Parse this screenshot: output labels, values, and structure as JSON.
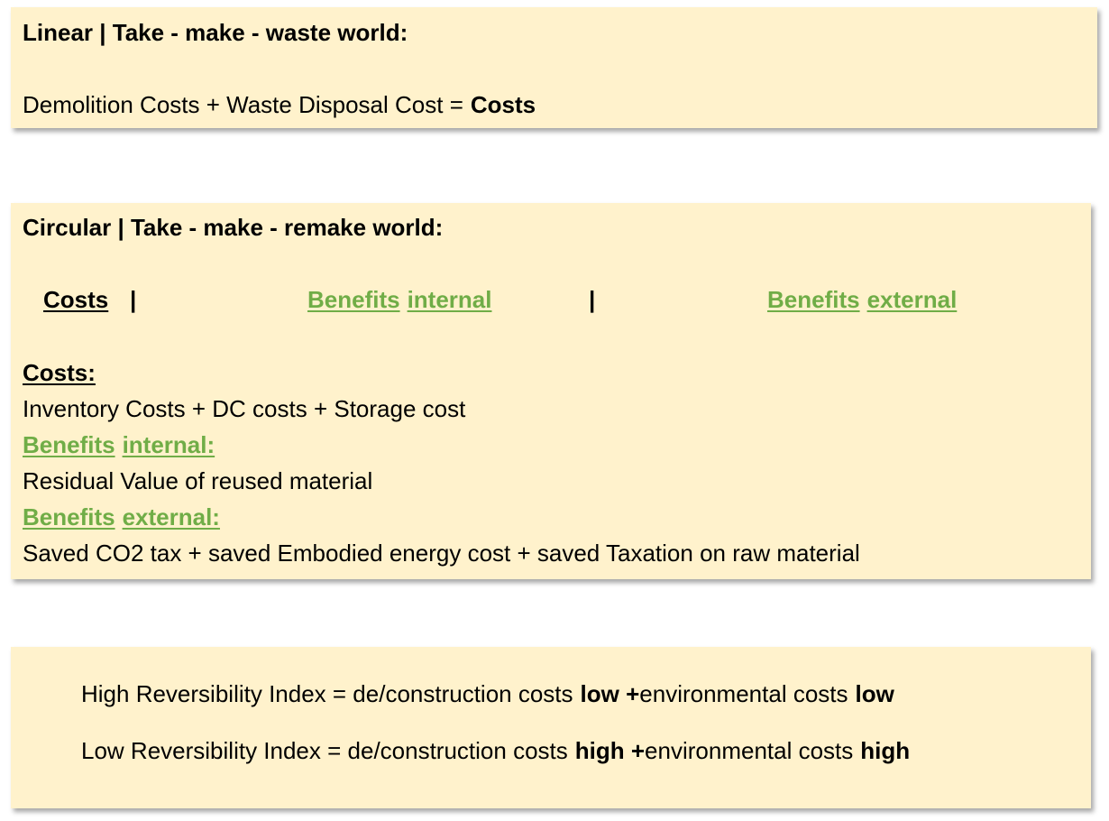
{
  "linear": {
    "title": "Linear | Take - make - waste world:",
    "formula": "Demolition Costs + Waste Disposal Cost  =",
    "result": "Costs"
  },
  "circular": {
    "title": "Circular | Take - make - remake world:",
    "header": [
      "Costs",
      "|",
      "Benefits",
      "internal",
      "|",
      "Benefits",
      "external"
    ],
    "costs": {
      "heading": "Costs:",
      "text": "Inventory Costs + DC costs + Storage cost"
    },
    "benefits_internal": {
      "heading": [
        "Benefits",
        "internal:"
      ],
      "text": "Residual Value  of reused material"
    },
    "benefits_external": {
      "heading": [
        "Benefits",
        "external:"
      ],
      "text": "Saved CO2 tax + saved Embodied energy cost + saved Taxation on raw material"
    }
  },
  "index": [
    [
      "High Reversibility Index = de/construction costs",
      "low +",
      "environmental costs",
      "low"
    ],
    [
      "Low Reversibility Index = de/construction costs",
      "high +",
      "environmental costs",
      "high"
    ]
  ]
}
